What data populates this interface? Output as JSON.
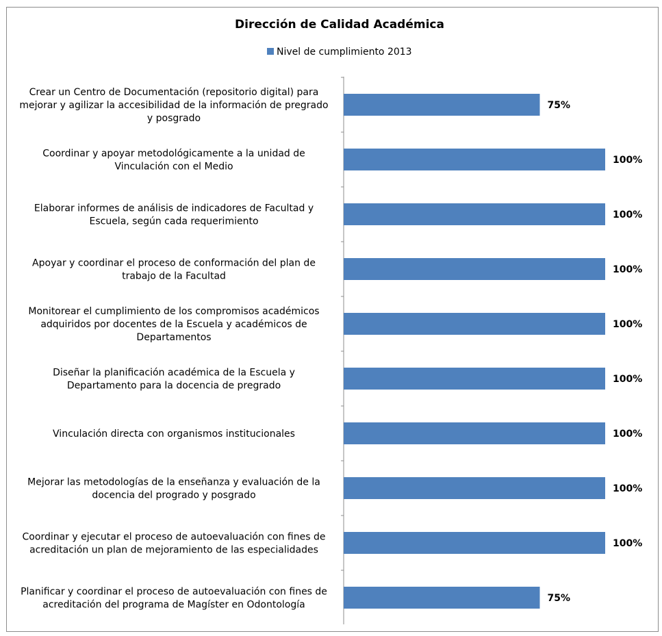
{
  "chart_data": {
    "type": "bar",
    "orientation": "horizontal",
    "title": "Dirección de Calidad  Académica",
    "legend_position": "top",
    "grid": false,
    "xlim": [
      0,
      100
    ],
    "series": [
      {
        "name": "Nivel de cumplimiento 2013",
        "color": "#4F81BD",
        "values": [
          75,
          100,
          100,
          100,
          100,
          100,
          100,
          100,
          100,
          75
        ],
        "labels": [
          "75%",
          "100%",
          "100%",
          "100%",
          "100%",
          "100%",
          "100%",
          "100%",
          "100%",
          "75%"
        ]
      }
    ],
    "categories": [
      [
        "Crear un Centro de Documentación (repositorio digital) para",
        "mejorar y agilizar la accesibilidad de la información de pregrado",
        "y posgrado"
      ],
      [
        "Coordinar y apoyar metodológicamente a la unidad de",
        "Vinculación con el Medio"
      ],
      [
        "Elaborar informes de análisis de indicadores de Facultad y",
        "Escuela, según cada requerimiento"
      ],
      [
        "Apoyar y coordinar el proceso de conformación del plan de",
        "trabajo de la Facultad"
      ],
      [
        "Monitorear el cumplimiento de los compromisos académicos",
        "adquiridos por docentes de la Escuela y académicos de",
        "Departamentos"
      ],
      [
        "Diseñar la planificación académica de la Escuela y",
        "Departamento para la docencia de pregrado"
      ],
      [
        "Vinculación directa con organismos institucionales"
      ],
      [
        "Mejorar las metodologías de la enseñanza y evaluación de la",
        "docencia del progrado y posgrado"
      ],
      [
        "Coordinar y ejecutar el proceso de autoevaluación con fines de",
        "acreditación un plan de mejoramiento de las especialidades"
      ],
      [
        "Planificar y coordinar el proceso de autoevaluación con fines de",
        "acreditación del programa de Magíster en Odontología"
      ]
    ]
  }
}
